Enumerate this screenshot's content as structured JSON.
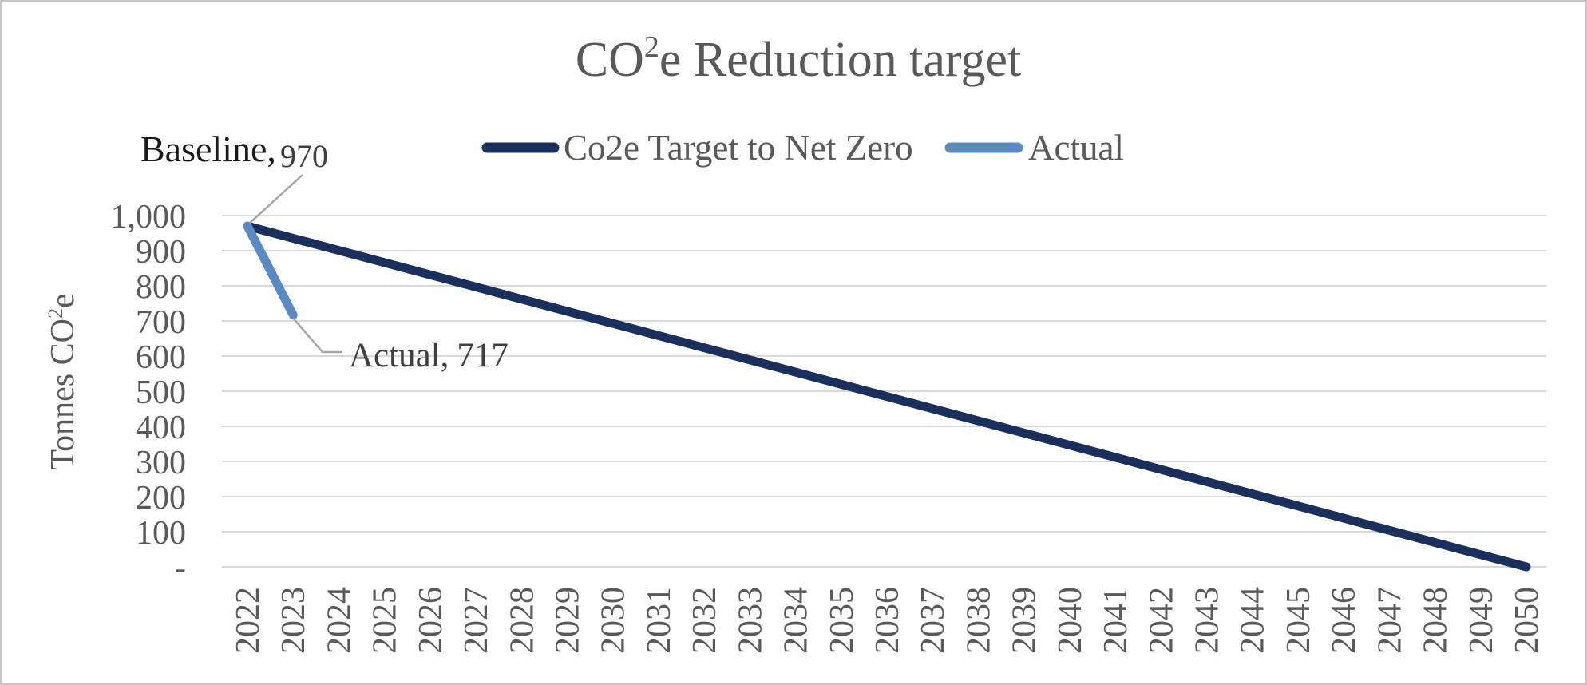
{
  "title": {
    "prefix": "CO",
    "sup": "2",
    "suffix": "e Reduction target",
    "full": "CO²e Reduction target"
  },
  "legend": {
    "items": [
      {
        "label": "Co2e Target to Net Zero",
        "color": "#1b2f5c"
      },
      {
        "label": "Actual",
        "color": "#5a8ac4"
      }
    ]
  },
  "y_axis": {
    "title_prefix": "Tonnes CO",
    "title_sup": "2",
    "title_suffix": "e",
    "title_full": "Tonnes CO²e",
    "ticks": [
      "1,000",
      "900",
      "800",
      "700",
      "600",
      "500",
      "400",
      "300",
      "200",
      "100",
      "-"
    ]
  },
  "labels": {
    "baseline": {
      "category": "Baseline,",
      "value": "970"
    },
    "actual": {
      "category": "Actual,",
      "value": "717"
    }
  },
  "colors": {
    "target_line": "#1b2f5c",
    "actual_line": "#5a8ac4",
    "gridline": "#d9d9d9",
    "leader": "#a6a6a6",
    "axis_text": "#595959",
    "border": "#c6c6c6"
  },
  "chart_data": {
    "type": "line",
    "title": "CO2e Reduction target",
    "x": [
      2022,
      2023,
      2024,
      2025,
      2026,
      2027,
      2028,
      2029,
      2030,
      2031,
      2032,
      2033,
      2034,
      2035,
      2036,
      2037,
      2038,
      2039,
      2040,
      2041,
      2042,
      2043,
      2044,
      2045,
      2046,
      2047,
      2048,
      2049,
      2050
    ],
    "series": [
      {
        "name": "Co2e Target to Net Zero",
        "color": "#1b2f5c",
        "points": [
          {
            "x": 2022,
            "y": 970
          },
          {
            "x": 2050,
            "y": 0
          }
        ]
      },
      {
        "name": "Actual",
        "color": "#5a8ac4",
        "points": [
          {
            "x": 2022,
            "y": 970
          },
          {
            "x": 2023,
            "y": 717
          }
        ]
      }
    ],
    "xlabel": "",
    "ylabel": "Tonnes CO2e",
    "ylim": [
      0,
      1000
    ],
    "ytick_interval": 100,
    "grid": "horizontal",
    "legend_position": "top-center",
    "annotations": [
      "Baseline, 970",
      "Actual, 717"
    ]
  }
}
